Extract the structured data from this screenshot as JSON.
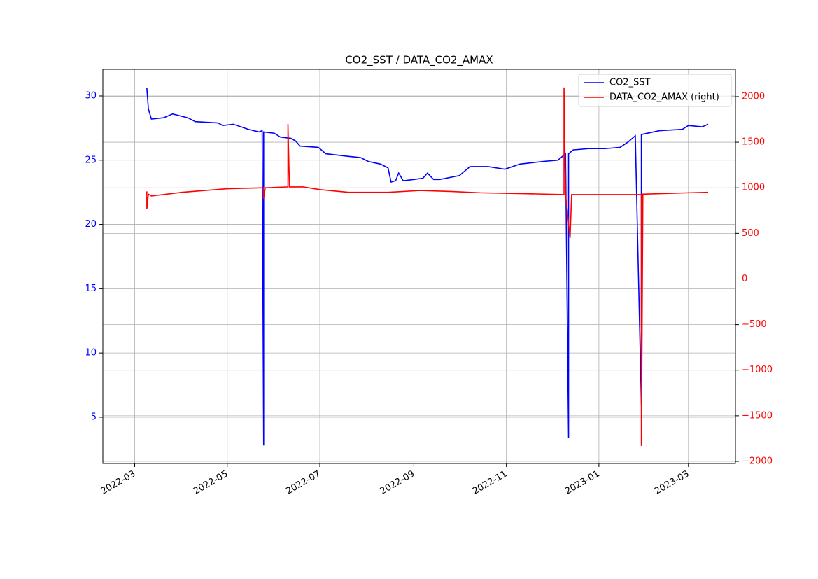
{
  "chart_data": {
    "type": "line",
    "title": "CO2_SST / DATA_CO2_AMAX",
    "grid": true,
    "legend": "upper right",
    "xlim": [
      "2022-02-08",
      "2023-04-01"
    ],
    "xticks": [
      "2022-03",
      "2022-05",
      "2022-07",
      "2022-09",
      "2022-11",
      "2023-01",
      "2023-03"
    ],
    "ylim": [
      1.4,
      32.07
    ],
    "yticks": [
      5,
      10,
      15,
      20,
      25,
      30
    ],
    "y2lim": [
      -2023,
      2299
    ],
    "y2ticks": [
      {
        "value": -2000,
        "label": "−2000"
      },
      {
        "value": -1500,
        "label": "−1500"
      },
      {
        "value": -1000,
        "label": "−1000"
      },
      {
        "value": -500,
        "label": "−500"
      },
      0,
      500,
      1000,
      1500,
      2000
    ],
    "series": [
      {
        "name": "CO2_SST",
        "color": "#0000ff",
        "axis": "y",
        "x": [
          "2022-03-09",
          "2022-03-10",
          "2022-03-12",
          "2022-03-20",
          "2022-03-26",
          "2022-04-05",
          "2022-04-10",
          "2022-04-25",
          "2022-04-28",
          "2022-05-05",
          "2022-05-15",
          "2022-05-22",
          "2022-05-24",
          "2022-05-25",
          "2022-05-25",
          "2022-06-01",
          "2022-06-05",
          "2022-06-12",
          "2022-06-15",
          "2022-06-18",
          "2022-06-30",
          "2022-07-05",
          "2022-07-20",
          "2022-07-28",
          "2022-08-02",
          "2022-08-10",
          "2022-08-15",
          "2022-08-17",
          "2022-08-20",
          "2022-08-22",
          "2022-08-25",
          "2022-09-01",
          "2022-09-07",
          "2022-09-10",
          "2022-09-14",
          "2022-09-18",
          "2022-10-01",
          "2022-10-08",
          "2022-10-20",
          "2022-10-31",
          "2022-11-10",
          "2022-11-25",
          "2022-12-05",
          "2022-12-10",
          "2022-12-12",
          "2022-12-12",
          "2022-12-15",
          "2022-12-25",
          "2023-01-05",
          "2023-01-15",
          "2023-01-20",
          "2023-01-25",
          "2023-01-29",
          "2023-01-29",
          "2023-02-10",
          "2023-02-25",
          "2023-03-01",
          "2023-03-10",
          "2023-03-14"
        ],
        "values": [
          30.6,
          29.0,
          28.2,
          28.3,
          28.6,
          28.3,
          28.0,
          27.9,
          27.7,
          27.8,
          27.4,
          27.2,
          27.3,
          2.8,
          27.2,
          27.1,
          26.8,
          26.7,
          26.5,
          26.1,
          26.0,
          25.5,
          25.3,
          25.2,
          24.9,
          24.7,
          24.4,
          23.3,
          23.4,
          24.0,
          23.4,
          23.5,
          23.6,
          24.0,
          23.5,
          23.5,
          23.8,
          24.5,
          24.5,
          24.3,
          24.7,
          24.9,
          25.0,
          25.5,
          3.4,
          25.5,
          25.8,
          25.9,
          25.9,
          26.0,
          26.4,
          26.9,
          6.0,
          27.0,
          27.3,
          27.4,
          27.7,
          27.6,
          27.8
        ]
      },
      {
        "name": "DATA_CO2_AMAX (right)",
        "color": "#ff0000",
        "axis": "y2",
        "x": [
          "2022-03-09",
          "2022-03-09",
          "2022-03-10",
          "2022-03-12",
          "2022-04-01",
          "2022-05-01",
          "2022-05-25",
          "2022-05-25",
          "2022-05-26",
          "2022-06-10",
          "2022-06-10",
          "2022-06-11",
          "2022-06-20",
          "2022-07-01",
          "2022-07-20",
          "2022-08-15",
          "2022-09-05",
          "2022-09-25",
          "2022-10-15",
          "2022-11-15",
          "2022-12-09",
          "2022-12-09",
          "2022-12-10",
          "2022-12-13",
          "2022-12-14",
          "2023-01-10",
          "2023-01-29",
          "2023-01-29",
          "2023-01-30",
          "2023-03-01",
          "2023-03-14"
        ],
        "values": [
          960,
          770,
          930,
          910,
          950,
          990,
          1000,
          880,
          1000,
          1010,
          1700,
          1010,
          1010,
          980,
          950,
          950,
          970,
          960,
          945,
          935,
          925,
          2100,
          925,
          450,
          925,
          925,
          925,
          -1830,
          930,
          945,
          950
        ]
      }
    ]
  }
}
